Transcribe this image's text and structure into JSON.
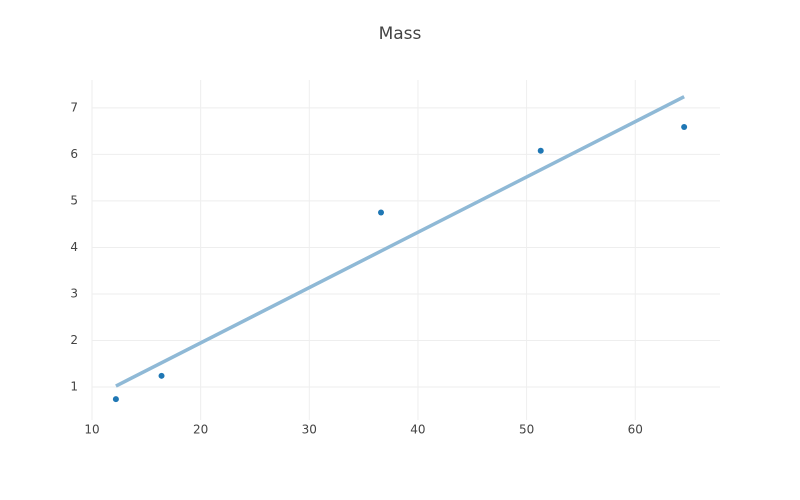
{
  "chart_data": {
    "type": "scatter",
    "title": "Mass",
    "series": [
      {
        "mode": "markers",
        "color": "#1f77b4",
        "x": [
          12.2,
          16.4,
          36.6,
          51.3,
          64.5
        ],
        "values": [
          0.74,
          1.24,
          4.75,
          6.08,
          6.59
        ]
      },
      {
        "mode": "lines",
        "color": "#8fb9d6",
        "x": [
          12.2,
          64.5
        ],
        "values": [
          1.02,
          7.24
        ]
      }
    ],
    "xlim": [
      10,
      67.8
    ],
    "xticks": [
      10,
      20,
      30,
      40,
      50,
      60
    ],
    "ylim": [
      0.29,
      7.6
    ],
    "yticks": [
      1,
      2,
      3,
      4,
      5,
      6,
      7
    ],
    "grid": true
  }
}
